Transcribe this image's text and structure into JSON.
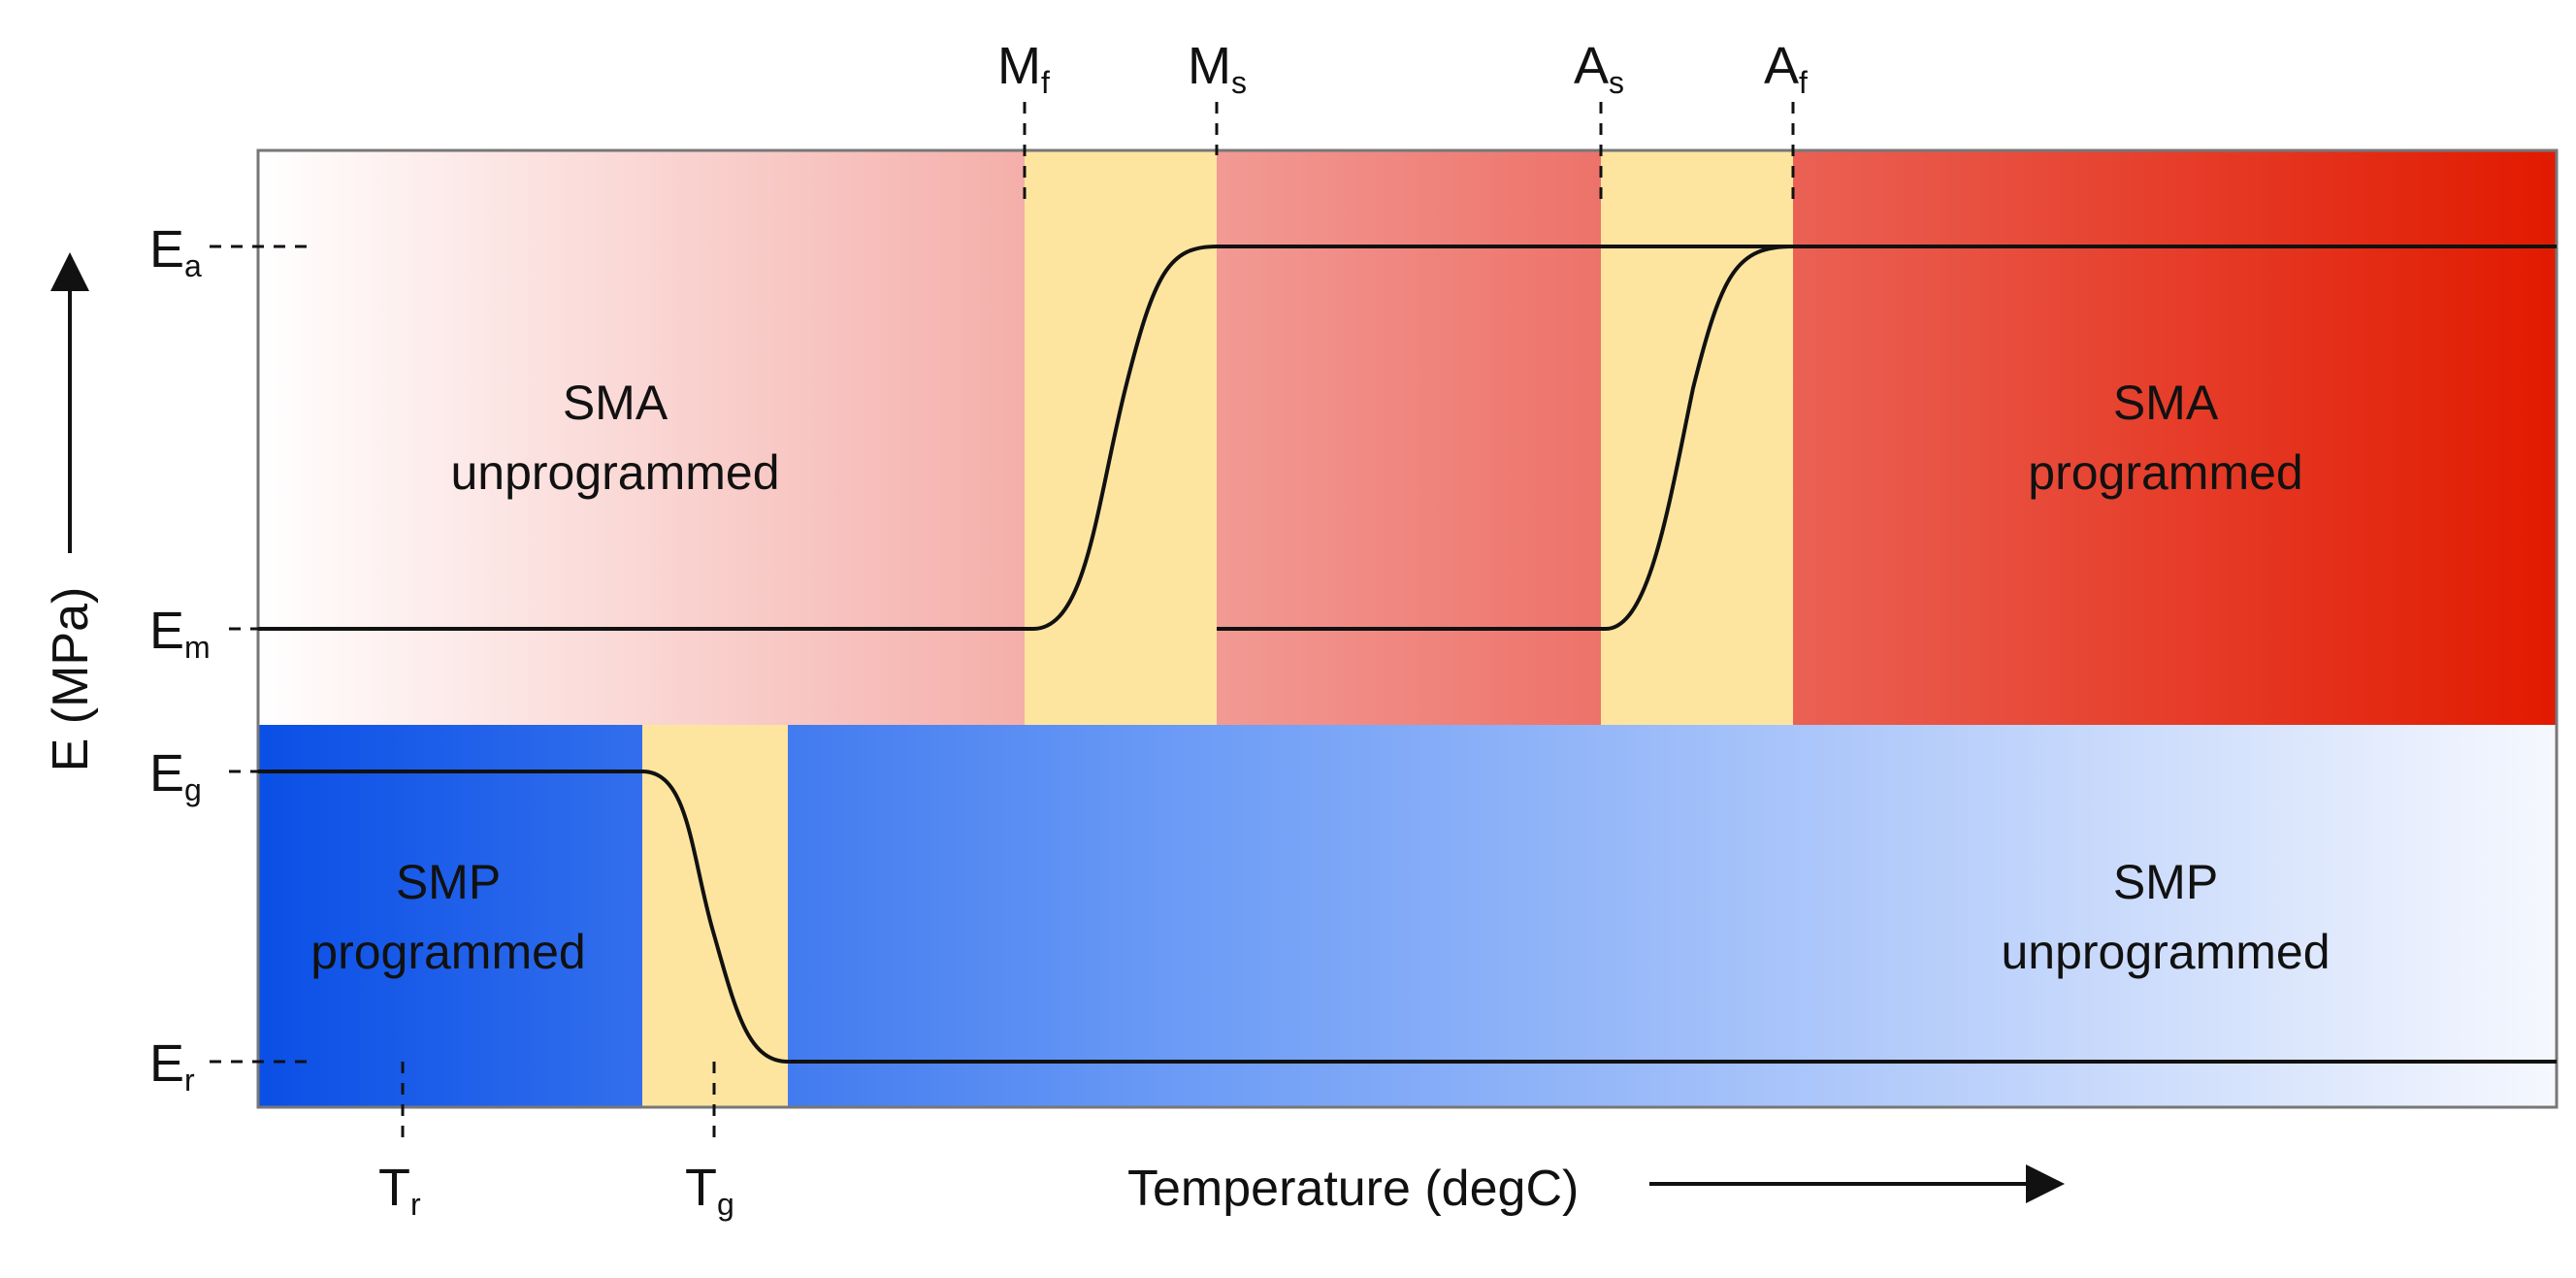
{
  "diagram": {
    "y_axis_label": "E (MPa)",
    "x_axis_label": "Temperature (degC)",
    "colors": {
      "sma_start": "#ffffff",
      "sma_mid": "#ee7a72",
      "sma_end": "#e11a00",
      "smp_start": "#0a4fe6",
      "smp_mid": "#6b9bf6",
      "smp_end": "#f6f8fe",
      "transition": "#fde5a0",
      "curve": "#111111",
      "border": "#777777"
    },
    "regions": {
      "sma_unprogrammed": {
        "line1": "SMA",
        "line2": "unprogrammed"
      },
      "sma_programmed": {
        "line1": "SMA",
        "line2": "programmed"
      },
      "smp_programmed": {
        "line1": "SMP",
        "line2": "programmed"
      },
      "smp_unprogrammed": {
        "line1": "SMP",
        "line2": "unprogrammed"
      }
    },
    "modulus_labels": [
      {
        "id": "Ea",
        "main": "E",
        "sub": "a"
      },
      {
        "id": "Em",
        "main": "E",
        "sub": "m"
      },
      {
        "id": "Eg",
        "main": "E",
        "sub": "g"
      },
      {
        "id": "Er",
        "main": "E",
        "sub": "r"
      }
    ],
    "temperature_labels": [
      {
        "id": "Mf",
        "main": "M",
        "sub": "f"
      },
      {
        "id": "Ms",
        "main": "M",
        "sub": "s"
      },
      {
        "id": "As",
        "main": "A",
        "sub": "s"
      },
      {
        "id": "Af",
        "main": "A",
        "sub": "f"
      },
      {
        "id": "Tr",
        "main": "T",
        "sub": "r"
      },
      {
        "id": "Tg",
        "main": "T",
        "sub": "g"
      }
    ]
  }
}
